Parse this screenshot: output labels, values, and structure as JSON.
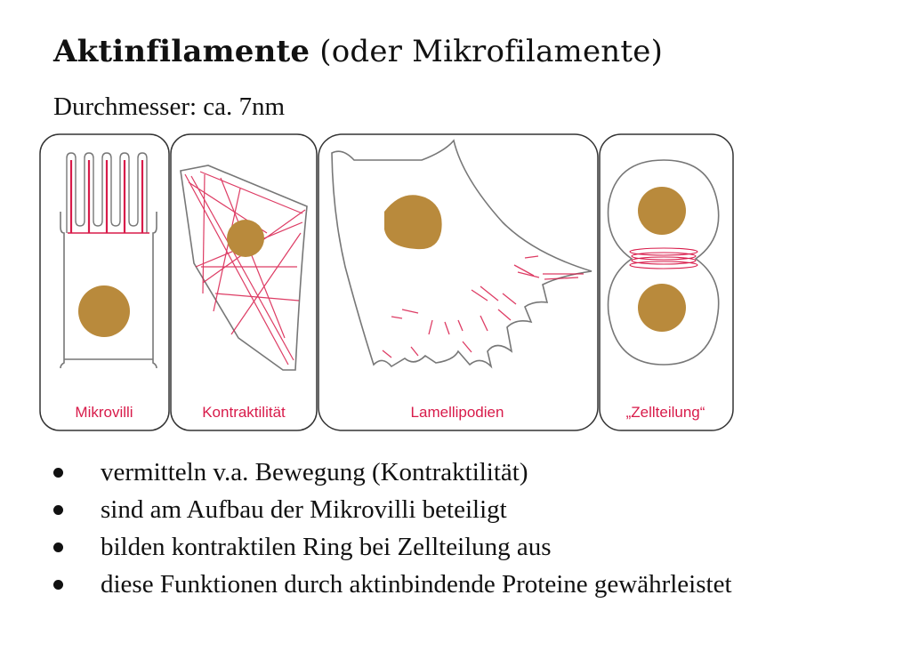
{
  "title": {
    "bold": "Aktinfilamente",
    "rest": "(oder Mikrofilamente)"
  },
  "subtitle": "Durchmesser: ca. 7nm",
  "figure": {
    "colors": {
      "filament": "#d81b4a",
      "nucleus": "#b98a3c",
      "outline": "#888888"
    },
    "panels": [
      {
        "label": "Mikrovilli"
      },
      {
        "label": "Kontraktilität"
      },
      {
        "label": "Lamellipodien"
      },
      {
        "label": "„Zellteilung“"
      }
    ]
  },
  "bullets": [
    "vermitteln v.a. Bewegung (Kontraktilität)",
    "sind am Aufbau der Mikrovilli beteiligt",
    "bilden kontraktilen Ring bei Zellteilung aus",
    "diese Funktionen durch aktinbindende Proteine gewährleistet"
  ]
}
